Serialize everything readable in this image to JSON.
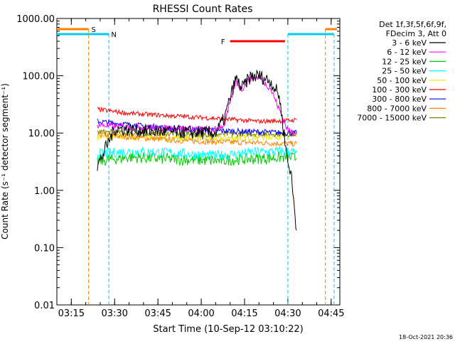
{
  "chart_data": {
    "type": "line",
    "title": "RHESSI Count Rates",
    "xlabel": "Start Time (10-Sep-12 03:10:22)",
    "ylabel": "Count Rate (s⁻¹ detector segment⁻¹)",
    "yscale": "log",
    "ylim": [
      0.01,
      1000
    ],
    "xlim": [
      "03:10",
      "04:48"
    ],
    "ytick_labels": [
      "1000.00",
      "100.00",
      "10.00",
      "1.00",
      "0.10",
      "0.01"
    ],
    "xtick_labels": [
      "03:15",
      "03:30",
      "03:45",
      "04:00",
      "04:15",
      "04:30",
      "04:45"
    ],
    "legend_header": [
      "Det 1f,3f,5f,6f,9f,",
      "FDecim 3, Att 0"
    ],
    "legend_placement": "right",
    "timestamp": "18-Oct-2021 20:36",
    "colors": {
      "black": "#000000",
      "magenta": "#ff00ff",
      "green": "#00cc00",
      "cyan": "#00ffff",
      "yellow": "#e6e600",
      "red": "#ff0000",
      "blue": "#0000ff",
      "orange": "#ff8000",
      "olive": "#808000",
      "flag_cyan": "#00ccee"
    },
    "series": [
      {
        "name": "3 - 6 keV",
        "color": "#000000",
        "points": [
          [
            "03:24",
            2.6
          ],
          [
            "03:30",
            12
          ],
          [
            "03:40",
            11
          ],
          [
            "03:50",
            10.5
          ],
          [
            "04:05",
            10
          ],
          [
            "04:08",
            18
          ],
          [
            "04:12",
            90
          ],
          [
            "04:14",
            60
          ],
          [
            "04:17",
            95
          ],
          [
            "04:20",
            100
          ],
          [
            "04:24",
            80
          ],
          [
            "04:27",
            45
          ],
          [
            "04:30",
            3.0
          ],
          [
            "04:31",
            2.2
          ],
          [
            "04:33",
            0.2
          ]
        ]
      },
      {
        "name": "6 - 12 keV",
        "color": "#ff00ff",
        "points": [
          [
            "03:24",
            14
          ],
          [
            "03:30",
            13
          ],
          [
            "03:40",
            12.5
          ],
          [
            "03:50",
            12
          ],
          [
            "04:05",
            11.5
          ],
          [
            "04:08",
            14
          ],
          [
            "04:12",
            80
          ],
          [
            "04:14",
            58
          ],
          [
            "04:17",
            90
          ],
          [
            "04:20",
            95
          ],
          [
            "04:24",
            60
          ],
          [
            "04:27",
            26
          ],
          [
            "04:30",
            11
          ],
          [
            "04:33",
            10
          ]
        ]
      },
      {
        "name": "12 - 25 keV",
        "color": "#00cc00",
        "points": [
          [
            "03:24",
            3.2
          ],
          [
            "03:35",
            3.8
          ],
          [
            "03:50",
            3.5
          ],
          [
            "04:05",
            3.3
          ],
          [
            "04:20",
            3.6
          ],
          [
            "04:30",
            3.8
          ],
          [
            "04:33",
            3.6
          ]
        ]
      },
      {
        "name": "25 - 50 keV",
        "color": "#00ffff",
        "points": [
          [
            "03:24",
            4.3
          ],
          [
            "03:35",
            4.8
          ],
          [
            "03:50",
            4.5
          ],
          [
            "04:05",
            4.0
          ],
          [
            "04:20",
            4.7
          ],
          [
            "04:30",
            4.8
          ],
          [
            "04:33",
            4.5
          ]
        ]
      },
      {
        "name": "50 - 100 keV",
        "color": "#e6e600",
        "points": [
          [
            "03:24",
            8.5
          ],
          [
            "03:35",
            8.8
          ],
          [
            "03:50",
            8.3
          ],
          [
            "04:05",
            8.0
          ],
          [
            "04:20",
            8.6
          ],
          [
            "04:30",
            8.8
          ],
          [
            "04:33",
            8.5
          ]
        ]
      },
      {
        "name": "100 - 300 keV",
        "color": "#ff0000",
        "points": [
          [
            "03:24",
            26
          ],
          [
            "03:35",
            22
          ],
          [
            "03:50",
            20
          ],
          [
            "04:05",
            18
          ],
          [
            "04:20",
            16
          ],
          [
            "04:30",
            16.5
          ],
          [
            "04:33",
            17
          ]
        ]
      },
      {
        "name": "300 - 800 keV",
        "color": "#0000ff",
        "points": [
          [
            "03:24",
            16
          ],
          [
            "03:35",
            14
          ],
          [
            "03:50",
            12
          ],
          [
            "04:05",
            11
          ],
          [
            "04:20",
            10.5
          ],
          [
            "04:30",
            10
          ],
          [
            "04:33",
            10
          ]
        ]
      },
      {
        "name": "800 - 7000 keV",
        "color": "#ff8000",
        "points": [
          [
            "03:24",
            9.5
          ],
          [
            "03:35",
            8.5
          ],
          [
            "03:50",
            7.5
          ],
          [
            "04:05",
            7.0
          ],
          [
            "04:20",
            6.8
          ],
          [
            "04:30",
            6.5
          ],
          [
            "04:33",
            6.5
          ]
        ]
      },
      {
        "name": "7000 - 15000 keV",
        "color": "#808000",
        "points": [
          [
            "03:24",
            10.5
          ],
          [
            "03:35",
            10
          ],
          [
            "03:50",
            9.8
          ],
          [
            "04:05",
            9.5
          ],
          [
            "04:20",
            9.8
          ],
          [
            "04:30",
            9.6
          ],
          [
            "04:33",
            9.5
          ]
        ]
      }
    ],
    "flags": [
      {
        "label": "S",
        "color": "#ff8000",
        "segments": [
          [
            "03:10",
            "03:21"
          ],
          [
            "04:43",
            "04:47"
          ]
        ],
        "vlines": [
          "03:21",
          "04:43"
        ]
      },
      {
        "label": "N",
        "color": "#00ccee",
        "segments": [
          [
            "03:10",
            "03:28"
          ],
          [
            "04:30",
            "04:46"
          ]
        ],
        "vlines": [
          "03:28",
          "04:30",
          "04:46"
        ]
      },
      {
        "label": "F",
        "color": "#ff0000",
        "segments": [
          [
            "04:10",
            "04:29"
          ]
        ],
        "vlines": []
      }
    ]
  }
}
